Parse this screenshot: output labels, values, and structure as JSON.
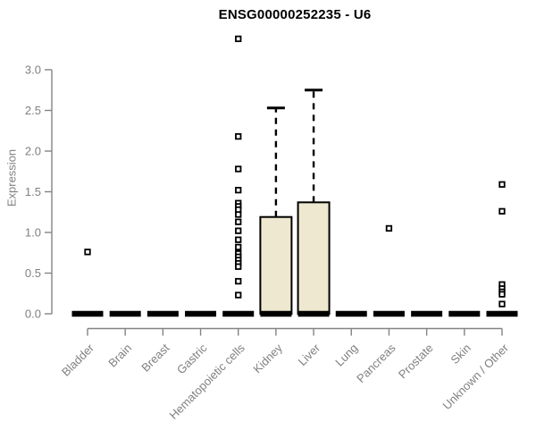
{
  "window": {
    "background": "#ffffff"
  },
  "chart_data": {
    "type": "box",
    "title": "ENSG00000252235 - U6",
    "ylabel": "Expression",
    "xlabel": "",
    "ylim": [
      0.0,
      3.0
    ],
    "yticks": [
      0.0,
      0.5,
      1.0,
      1.5,
      2.0,
      2.5,
      3.0
    ],
    "grid": false,
    "legend": false,
    "categories": [
      "Bladder",
      "Brain",
      "Breast",
      "Gastric",
      "Hematopoietic cells",
      "Kidney",
      "Liver",
      "Lung",
      "Pancreas",
      "Prostate",
      "Skin",
      "Unknown / Other"
    ],
    "boxes": [
      {
        "category": "Bladder",
        "q1": 0,
        "median": 0,
        "q3": 0,
        "whisker_low": 0,
        "whisker_high": 0,
        "outliers": [
          0.76
        ]
      },
      {
        "category": "Brain",
        "q1": 0,
        "median": 0,
        "q3": 0,
        "whisker_low": 0,
        "whisker_high": 0,
        "outliers": []
      },
      {
        "category": "Breast",
        "q1": 0,
        "median": 0,
        "q3": 0,
        "whisker_low": 0,
        "whisker_high": 0,
        "outliers": []
      },
      {
        "category": "Gastric",
        "q1": 0,
        "median": 0,
        "q3": 0,
        "whisker_low": 0,
        "whisker_high": 0,
        "outliers": []
      },
      {
        "category": "Hematopoietic cells",
        "q1": 0,
        "median": 0,
        "q3": 0,
        "whisker_low": 0,
        "whisker_high": 0,
        "outliers": [
          3.38,
          2.18,
          1.78,
          1.52,
          1.36,
          1.32,
          1.28,
          1.22,
          1.13,
          1.02,
          0.91,
          0.82,
          0.74,
          0.7,
          0.66,
          0.62,
          0.58,
          0.4,
          0.23
        ]
      },
      {
        "category": "Kidney",
        "q1": 0,
        "median": 0,
        "q3": 1.19,
        "whisker_low": 0,
        "whisker_high": 2.53,
        "outliers": []
      },
      {
        "category": "Liver",
        "q1": 0,
        "median": 0,
        "q3": 1.37,
        "whisker_low": 0,
        "whisker_high": 2.75,
        "outliers": []
      },
      {
        "category": "Lung",
        "q1": 0,
        "median": 0,
        "q3": 0,
        "whisker_low": 0,
        "whisker_high": 0,
        "outliers": []
      },
      {
        "category": "Pancreas",
        "q1": 0,
        "median": 0,
        "q3": 0,
        "whisker_low": 0,
        "whisker_high": 0,
        "outliers": [
          1.05
        ]
      },
      {
        "category": "Prostate",
        "q1": 0,
        "median": 0,
        "q3": 0,
        "whisker_low": 0,
        "whisker_high": 0,
        "outliers": []
      },
      {
        "category": "Skin",
        "q1": 0,
        "median": 0,
        "q3": 0,
        "whisker_low": 0,
        "whisker_high": 0,
        "outliers": []
      },
      {
        "category": "Unknown / Other",
        "q1": 0,
        "median": 0,
        "q3": 0,
        "whisker_low": 0,
        "whisker_high": 0,
        "outliers": [
          1.59,
          1.26,
          0.36,
          0.31,
          0.27,
          0.24,
          0.12
        ]
      }
    ],
    "colors": {
      "box_fill": "#ede8cf",
      "box_border": "#000000",
      "median": "#000000",
      "whisker": "#000000",
      "outlier_fill": "#ffffff",
      "outlier_border": "#000000",
      "axis": "#848484",
      "tick_label": "#808080",
      "title": "#000000",
      "background": "#ffffff"
    }
  }
}
